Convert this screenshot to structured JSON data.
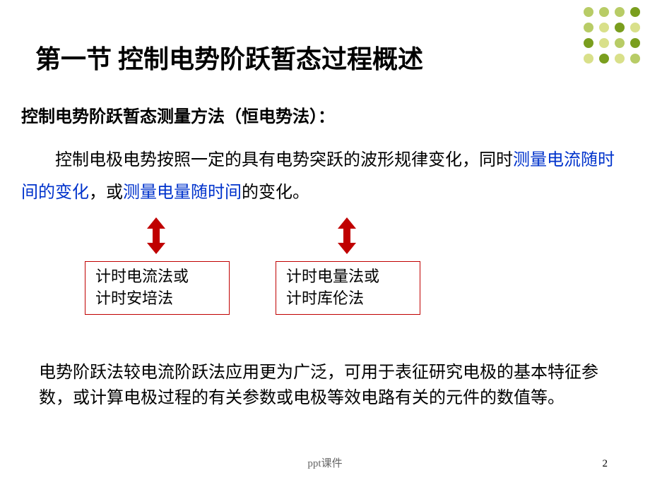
{
  "decor": {
    "dot_colors": [
      "#b8cc66",
      "#b8cc66",
      "#b8cc66",
      "#7a9e1e",
      "#b8cc66",
      "#d9e08a",
      "#7a9e1e",
      "#d9e08a",
      "#7a9e1e",
      "#d9e08a",
      "#b8cc66",
      "#7a9e1e",
      "#d9e08a",
      "#7a9e1e",
      "#d9e08a",
      "#b8cc66"
    ]
  },
  "title": "第一节 控制电势阶跃暂态过程概述",
  "heading": "控制电势阶跃暂态测量方法（恒电势法）：",
  "para1": {
    "pre": "控制电极电势按照一定的具有电势突跃的波形规律变化，同时",
    "blue1": "测量电流随时间的变化",
    "mid": "，或",
    "blue2": "测量电量随时间",
    "post": "的变化。"
  },
  "arrow": {
    "fill": "#c00000",
    "width": 26,
    "height": 52
  },
  "box1": {
    "line1": "计时电流法或",
    "line2": "计时安培法",
    "border_color": "#c00000"
  },
  "box2": {
    "line1": "计时电量法或",
    "line2": "计时库伦法",
    "border_color": "#c00000"
  },
  "para2": "电势阶跃法较电流阶跃法应用更为广泛，可用于表征研究电极的基本特征参数，或计算电极过程的有关参数或电极等效电路有关的元件的数值等。",
  "footer": "ppt课件",
  "page_number": "2",
  "colors": {
    "text": "#000000",
    "blue_text": "#0033cc",
    "background": "#ffffff"
  },
  "typography": {
    "title_fontsize": 36,
    "heading_fontsize": 24,
    "body_fontsize": 24,
    "box_fontsize": 22,
    "footer_fontsize": 15
  }
}
